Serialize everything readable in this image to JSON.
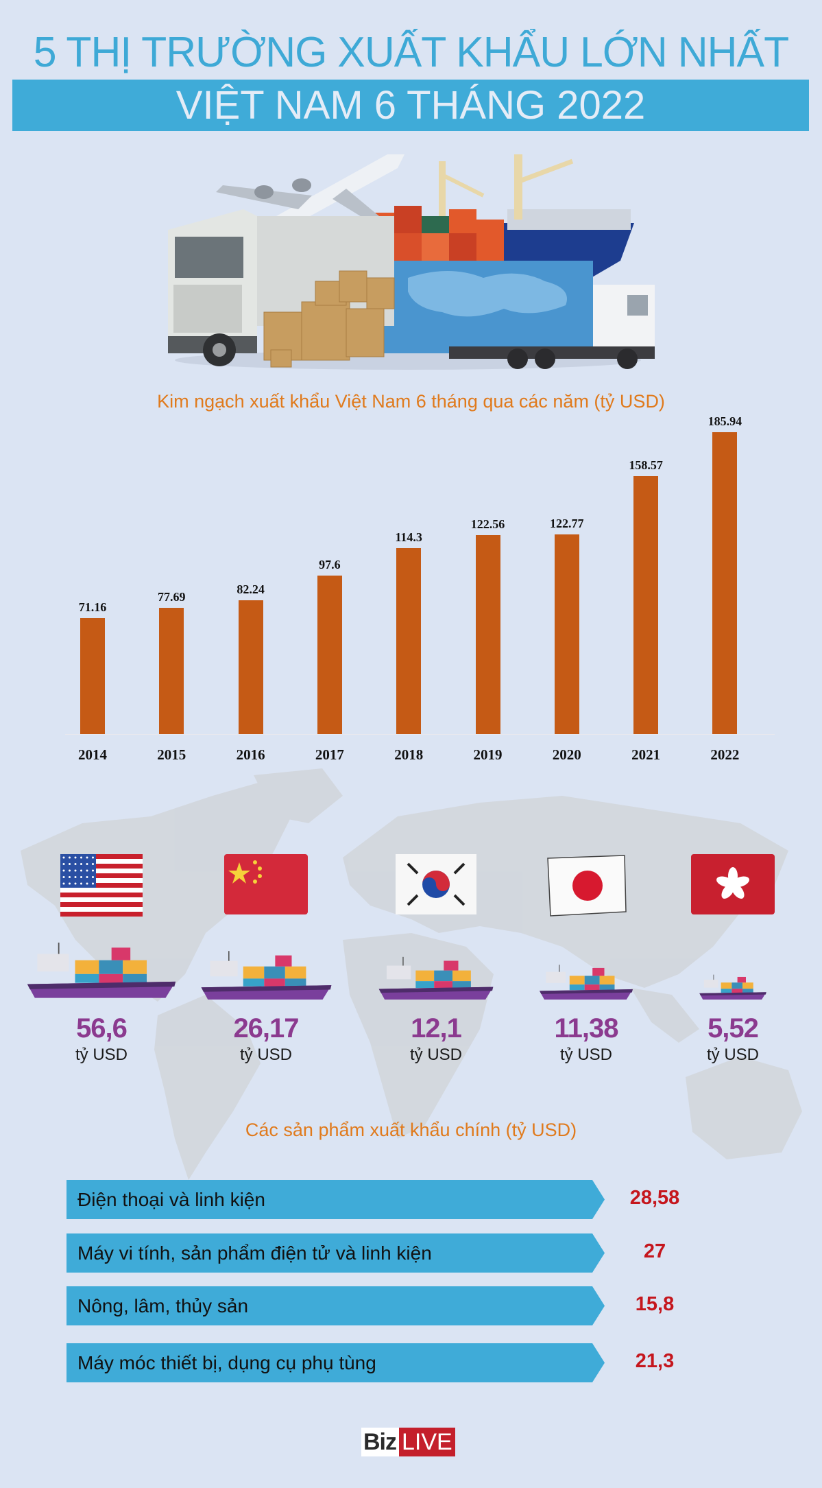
{
  "header": {
    "title": "5 THỊ TRƯỜNG XUẤT KHẨU LỚN NHẤT",
    "subtitle": "VIỆT NAM 6 THÁNG 2022",
    "title_color": "#3ea9d6",
    "banner_color": "#3fabd8"
  },
  "hero": {
    "icon": "logistics-illustration"
  },
  "chart_data": {
    "type": "bar",
    "title": "Kim ngạch xuất khẩu Việt Nam 6 tháng qua các năm (tỷ USD)",
    "xlabel": "",
    "ylabel": "",
    "categories": [
      "2014",
      "2015",
      "2016",
      "2017",
      "2018",
      "2019",
      "2020",
      "2021",
      "2022"
    ],
    "values": [
      71.16,
      77.69,
      82.24,
      97.6,
      114.3,
      122.56,
      122.77,
      158.57,
      185.94
    ],
    "value_labels": [
      "71.16",
      "77.69",
      "82.24",
      "97.6",
      "114.3",
      "122.56",
      "122.77",
      "158.57",
      "185.94"
    ],
    "ylim": [
      0,
      190
    ],
    "grid": false,
    "legend": "none",
    "bar_color": "#c55a15"
  },
  "markets": {
    "unit": "tỷ USD",
    "value_color": "#8b3a8f",
    "items": [
      {
        "country": "Hoa Kỳ",
        "flag_icon": "usa-flag-icon",
        "value": "56,6",
        "unit": "tỷ USD"
      },
      {
        "country": "Trung Quốc",
        "flag_icon": "china-flag-icon",
        "value": "26,17",
        "unit": "tỷ USD"
      },
      {
        "country": "Hàn Quốc",
        "flag_icon": "south-korea-flag-icon",
        "value": "12,1",
        "unit": "tỷ USD"
      },
      {
        "country": "Nhật Bản",
        "flag_icon": "japan-flag-icon",
        "value": "11,38",
        "unit": "tỷ USD"
      },
      {
        "country": "Hồng Kông",
        "flag_icon": "hong-kong-flag-icon",
        "value": "5,52",
        "unit": "tỷ USD"
      }
    ]
  },
  "products": {
    "title": "Các sản phẩm xuất khẩu chính (tỷ USD)",
    "value_color": "#c5161d",
    "items": [
      {
        "label": "Điện thoại và linh kiện",
        "value": "28,58"
      },
      {
        "label": "Máy vi tính, sản phẩm điện tử và linh kiện",
        "value": "27"
      },
      {
        "label": "Nông, lâm, thủy sản",
        "value": "15,8"
      },
      {
        "label": "Máy móc thiết bị, dụng cụ phụ tùng",
        "value": "21,3"
      }
    ]
  },
  "footer": {
    "logo_part1": "Biz",
    "logo_part2": "LIVE"
  }
}
